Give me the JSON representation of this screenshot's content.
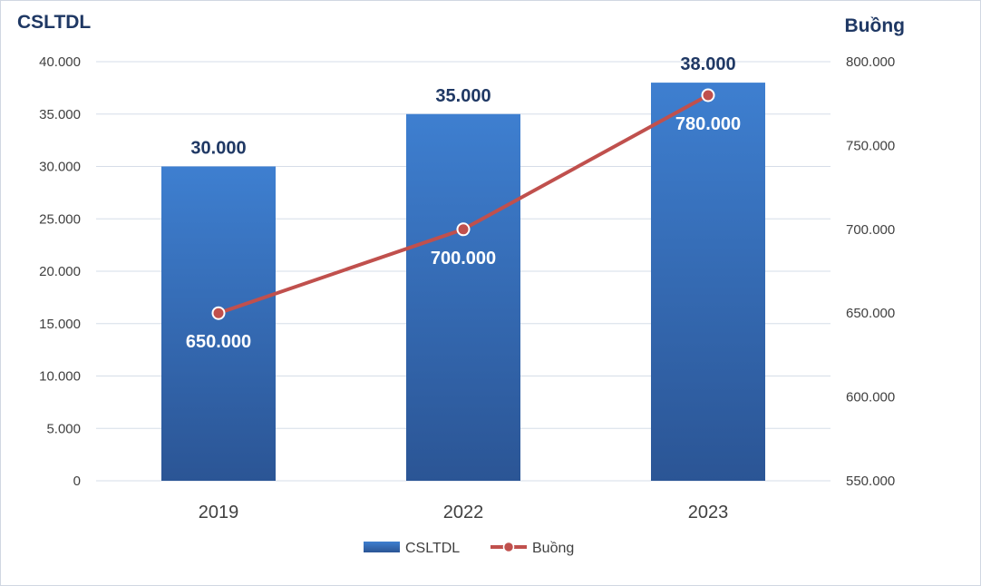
{
  "chart_data": {
    "type": "bar",
    "categories": [
      "2019",
      "2022",
      "2023"
    ],
    "left_axis": {
      "title": "CSLTDL",
      "ylim": [
        0,
        40000
      ],
      "ticks": [
        "0",
        "5.000",
        "10.000",
        "15.000",
        "20.000",
        "25.000",
        "30.000",
        "35.000",
        "40.000"
      ]
    },
    "right_axis": {
      "title": "Buồng",
      "ylim": [
        550000,
        800000
      ],
      "ticks": [
        "550.000",
        "600.000",
        "650.000",
        "700.000",
        "750.000",
        "800.000"
      ]
    },
    "series": [
      {
        "name": "CSLTDL",
        "kind": "bar",
        "axis": "left",
        "values": [
          30000,
          35000,
          38000
        ],
        "labels": [
          "30.000",
          "35.000",
          "38.000"
        ],
        "color": "#2e5fa3"
      },
      {
        "name": "Buồng",
        "kind": "line",
        "axis": "right",
        "values": [
          650000,
          700000,
          780000
        ],
        "labels": [
          "650.000",
          "700.000",
          "780.000"
        ],
        "color": "#c0504d"
      }
    ],
    "grid": true,
    "legend": "bottom-center"
  }
}
